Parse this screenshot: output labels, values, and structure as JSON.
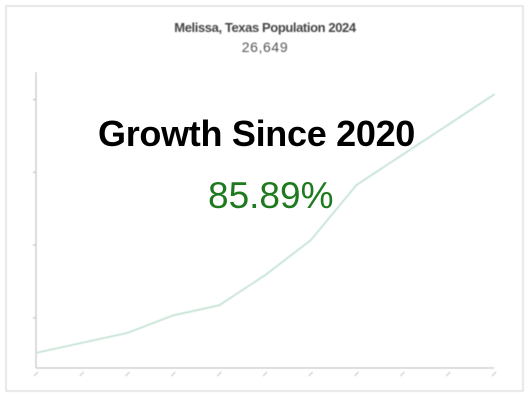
{
  "chart_data": {
    "type": "line",
    "title": "Melissa, Texas Population 2024",
    "subtitle": "26,649",
    "xlabel": "",
    "ylabel": "",
    "x": [
      0,
      1,
      2,
      3,
      4,
      5,
      6,
      7,
      8,
      9,
      10
    ],
    "values": [
      0.1,
      0.5,
      0.9,
      1.6,
      2.0,
      3.2,
      4.6,
      6.8,
      8.0,
      9.2,
      10.4
    ],
    "ylim": [
      -0.5,
      11.3
    ],
    "grid": false,
    "line_color": "#bfe0cf"
  },
  "overlay": {
    "heading": "Growth Since 2020",
    "value": "85.89%",
    "value_color": "#1f7a1f"
  }
}
